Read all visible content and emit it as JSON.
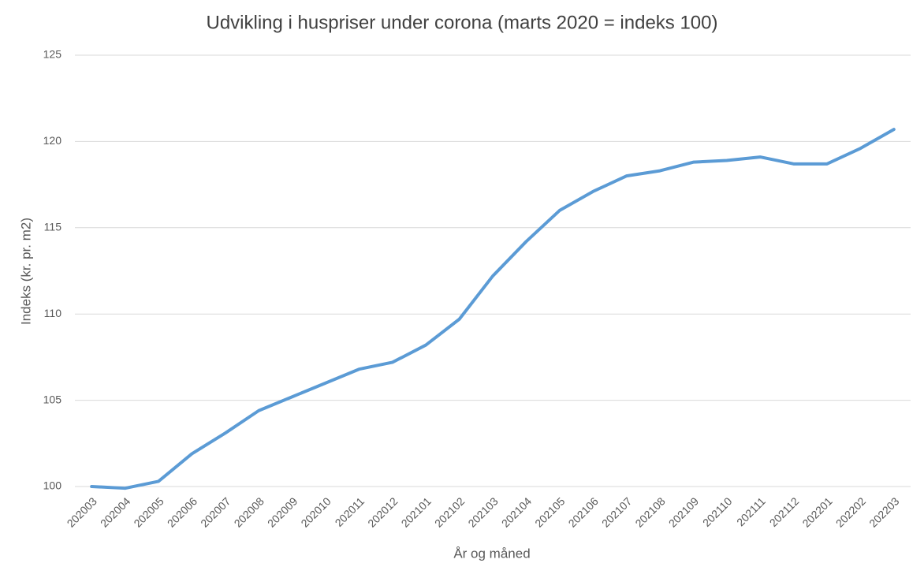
{
  "chart_data": {
    "type": "line",
    "title": "Udvikling i huspriser under corona (marts 2020 = indeks 100)",
    "x_label": "År og måned",
    "y_label": "Indeks (kr. pr. m2)",
    "categories": [
      "202003",
      "202004",
      "202005",
      "202006",
      "202007",
      "202008",
      "202009",
      "202010",
      "202011",
      "202012",
      "202101",
      "202102",
      "202103",
      "202104",
      "202105",
      "202106",
      "202107",
      "202108",
      "202109",
      "202110",
      "202111",
      "202112",
      "202201",
      "202202",
      "202203"
    ],
    "series": [
      {
        "name": "Indeks",
        "color": "#5b9bd5",
        "values": [
          100.0,
          99.9,
          100.3,
          101.9,
          103.1,
          104.4,
          105.2,
          106.0,
          106.8,
          107.2,
          108.2,
          109.7,
          112.2,
          114.2,
          116.0,
          117.1,
          118.0,
          118.3,
          118.8,
          118.9,
          119.1,
          118.7,
          118.7,
          119.6,
          120.7
        ]
      }
    ],
    "ylim": [
      100,
      125
    ],
    "yticks": [
      100,
      105,
      110,
      115,
      120,
      125
    ],
    "grid": true
  }
}
